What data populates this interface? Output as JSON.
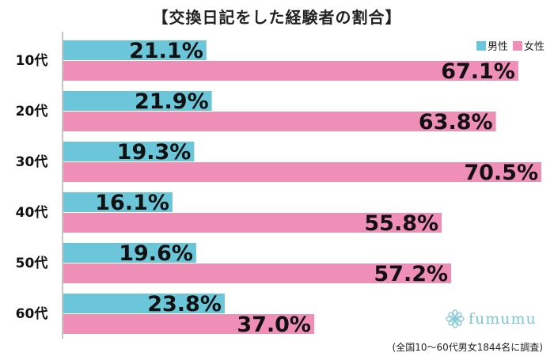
{
  "chart_data": {
    "type": "bar",
    "orientation": "horizontal",
    "title": "【交換日記をした経験者の割合】",
    "categories": [
      "10代",
      "20代",
      "30代",
      "40代",
      "50代",
      "60代"
    ],
    "series": [
      {
        "name": "男性",
        "color": "#6cc6d9",
        "values": [
          21.1,
          21.9,
          19.3,
          16.1,
          19.6,
          23.8
        ]
      },
      {
        "name": "女性",
        "color": "#ef8fb8",
        "values": [
          67.1,
          63.8,
          70.5,
          55.8,
          57.2,
          37.0
        ]
      }
    ],
    "value_labels": {
      "男性": [
        "21.1%",
        "21.9%",
        "19.3%",
        "16.1%",
        "19.6%",
        "23.8%"
      ],
      "女性": [
        "67.1%",
        "63.8%",
        "70.5%",
        "55.8%",
        "57.2%",
        "37.0%"
      ]
    },
    "xlim": [
      0,
      70.5
    ],
    "legend_position": "top-right",
    "grid": false
  },
  "brand": {
    "name": "fumumu",
    "icon": "flower-logo-icon"
  },
  "note": "(全国10～60代男女1844名に調査)"
}
